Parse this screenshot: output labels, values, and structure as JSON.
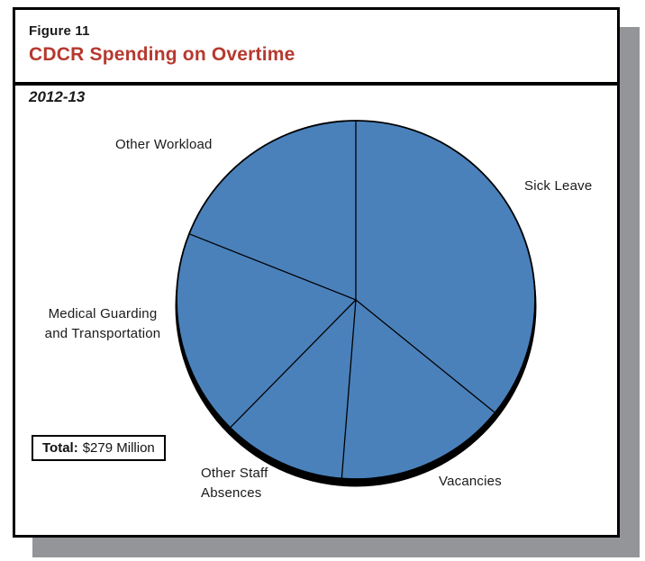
{
  "header": {
    "figure_label": "Figure 11",
    "title": "CDCR Spending on Overtime",
    "subtitle": "2012-13"
  },
  "total_box": {
    "label": "Total:",
    "value": "$279 Million"
  },
  "chart_data": {
    "type": "pie",
    "title": "CDCR Spending on Overtime",
    "subtitle": "2012-13",
    "total": 279,
    "units": "millions of dollars",
    "start_angle_deg": 0,
    "direction": "clockwise",
    "legend_position": "outside-labels",
    "slices": [
      {
        "label": "Sick Leave",
        "display": "Sick Leave",
        "value": 100,
        "pct": 35.9
      },
      {
        "label": "Vacancies",
        "display": "Vacancies",
        "value": 43,
        "pct": 15.4
      },
      {
        "label": "Other Staff Absences",
        "display": "Other Staff\nAbsences",
        "value": 31,
        "pct": 11.1
      },
      {
        "label": "Medical Guarding and Transportation",
        "display": "Medical Guarding\nand Transportation",
        "value": 52,
        "pct": 18.6
      },
      {
        "label": "Other Workload",
        "display": "Other Workload",
        "value": 53,
        "pct": 19.0
      }
    ],
    "colors": {
      "slice_fill": "#4a81bb",
      "slice_stroke": "#000000",
      "shadow": "#000000",
      "title_accent": "#b6392f",
      "box_shadow_gray": "#949599"
    }
  }
}
